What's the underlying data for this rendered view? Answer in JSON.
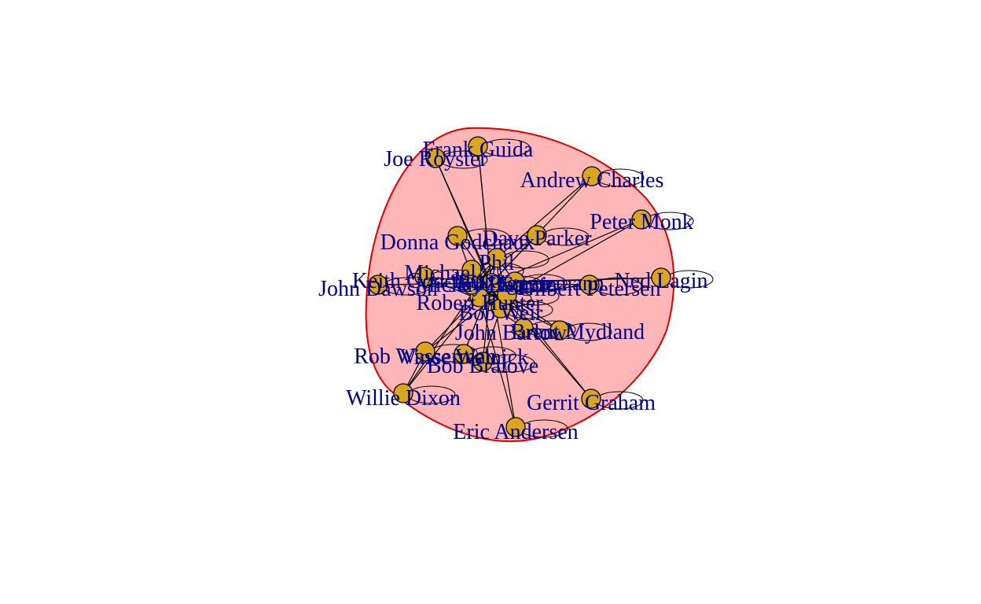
{
  "colors": {
    "node_fill": "#DAA520",
    "node_stroke": "#000000",
    "edge": "#000000",
    "group_fill": "#FFB6B6",
    "group_stroke": "#E00000",
    "label": "#00008B"
  },
  "nodes": [
    {
      "id": "frank-guida",
      "label": "Frank Guida"
    },
    {
      "id": "joe-royster",
      "label": "Joe Royster"
    },
    {
      "id": "andrew-charles",
      "label": "Andrew Charles"
    },
    {
      "id": "peter-monk",
      "label": "Peter Monk"
    },
    {
      "id": "donna-godchaux",
      "label": "Donna Godchaux"
    },
    {
      "id": "dave-parker",
      "label": "Dave Parker"
    },
    {
      "id": "ned-lagin",
      "label": "Ned Lagin"
    },
    {
      "id": "john-dawson",
      "label": "John Dawson"
    },
    {
      "id": "keith-godchaux",
      "label": "Keith Godchaux"
    },
    {
      "id": "michael",
      "label": "Michael"
    },
    {
      "id": "phil",
      "label": "Phil"
    },
    {
      "id": "robert-hunter",
      "label": "Robert Hunter"
    },
    {
      "id": "bob-weir",
      "label": "Bob Weir"
    },
    {
      "id": "gilbert-petersen",
      "label": "Gilbert Petersen"
    },
    {
      "id": "john-barlow",
      "label": "John Barlow"
    },
    {
      "id": "brent-mydland",
      "label": "Brent Mydland"
    },
    {
      "id": "rob-wasserman",
      "label": "Rob Wasserman"
    },
    {
      "id": "vince-welnick",
      "label": "Vince Welnick"
    },
    {
      "id": "bob-bralove",
      "label": "Bob Bralove"
    },
    {
      "id": "willie-dixon",
      "label": "Willie Dixon"
    },
    {
      "id": "gerrit-graham",
      "label": "Gerrit Graham"
    },
    {
      "id": "eric-andersen",
      "label": "Eric Andersen"
    },
    {
      "id": "jerry-garcia",
      "label": "Jerry Garcia"
    },
    {
      "id": "bill-kreutzmann",
      "label": "Bill Kreutzmann"
    },
    {
      "id": "mickey-hart",
      "label": "Mickey Hart"
    },
    {
      "id": "pigpen",
      "label": "Pigpen"
    }
  ]
}
